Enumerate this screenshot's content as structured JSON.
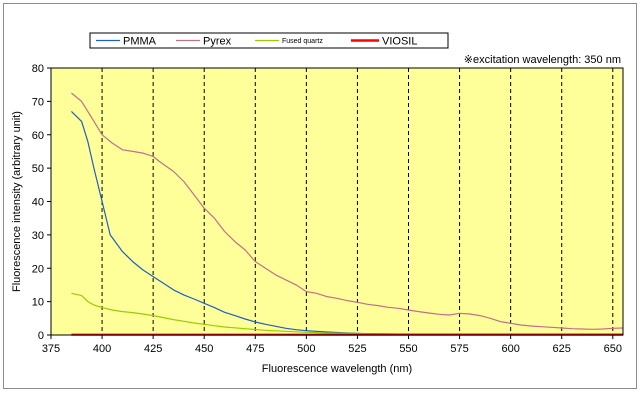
{
  "chart_data": {
    "type": "line",
    "title": "",
    "xlabel": "Fluorescence wavelength (nm)",
    "ylabel": "Fluorescence intensity (arbitrary unit)",
    "xlim": [
      375,
      655
    ],
    "ylim": [
      0,
      80
    ],
    "xticks": [
      375,
      400,
      425,
      450,
      475,
      500,
      525,
      550,
      575,
      600,
      625,
      650
    ],
    "yticks": [
      0,
      10,
      20,
      30,
      40,
      50,
      60,
      70,
      80
    ],
    "grid": "vertical-dashed",
    "plot_background": "#ffff99",
    "legend_position": "top",
    "annotation": "※excitation wavelength:  350 nm",
    "series": [
      {
        "name": "PMMA",
        "color": "#1f5fbf",
        "legend_small": false,
        "points": [
          [
            385,
            67
          ],
          [
            390,
            64
          ],
          [
            393,
            58
          ],
          [
            396,
            50
          ],
          [
            400,
            40
          ],
          [
            404,
            30
          ],
          [
            410,
            25
          ],
          [
            415,
            22
          ],
          [
            420,
            19.5
          ],
          [
            425,
            17.5
          ],
          [
            430,
            15.5
          ],
          [
            435,
            13.5
          ],
          [
            440,
            12
          ],
          [
            445,
            10.8
          ],
          [
            450,
            9.5
          ],
          [
            455,
            8.2
          ],
          [
            460,
            6.8
          ],
          [
            465,
            5.8
          ],
          [
            470,
            4.8
          ],
          [
            475,
            3.9
          ],
          [
            480,
            3.2
          ],
          [
            485,
            2.6
          ],
          [
            490,
            2.0
          ],
          [
            495,
            1.6
          ],
          [
            500,
            1.3
          ],
          [
            510,
            0.9
          ],
          [
            520,
            0.6
          ],
          [
            530,
            0.4
          ],
          [
            540,
            0.3
          ],
          [
            550,
            0.25
          ],
          [
            575,
            0.2
          ],
          [
            600,
            0.2
          ],
          [
            625,
            0.2
          ],
          [
            655,
            0.2
          ]
        ]
      },
      {
        "name": "Pyrex",
        "color": "#c0708a",
        "legend_small": false,
        "points": [
          [
            385,
            72.5
          ],
          [
            390,
            70
          ],
          [
            395,
            65
          ],
          [
            400,
            60
          ],
          [
            405,
            57.5
          ],
          [
            410,
            55.5
          ],
          [
            415,
            55
          ],
          [
            420,
            54.5
          ],
          [
            425,
            53.5
          ],
          [
            428,
            52
          ],
          [
            435,
            49
          ],
          [
            440,
            46
          ],
          [
            445,
            42
          ],
          [
            450,
            38
          ],
          [
            455,
            35
          ],
          [
            460,
            31
          ],
          [
            465,
            28
          ],
          [
            470,
            25.5
          ],
          [
            475,
            22
          ],
          [
            480,
            20
          ],
          [
            485,
            18
          ],
          [
            490,
            16.5
          ],
          [
            495,
            15
          ],
          [
            500,
            13
          ],
          [
            505,
            12.5
          ],
          [
            510,
            11.5
          ],
          [
            515,
            11
          ],
          [
            520,
            10.3
          ],
          [
            525,
            9.8
          ],
          [
            530,
            9.2
          ],
          [
            535,
            8.8
          ],
          [
            540,
            8.3
          ],
          [
            545,
            8
          ],
          [
            550,
            7.5
          ],
          [
            555,
            7
          ],
          [
            560,
            6.6
          ],
          [
            565,
            6.2
          ],
          [
            570,
            6
          ],
          [
            575,
            6.5
          ],
          [
            580,
            6.3
          ],
          [
            585,
            5.8
          ],
          [
            590,
            5
          ],
          [
            595,
            4
          ],
          [
            600,
            3.5
          ],
          [
            605,
            3
          ],
          [
            610,
            2.7
          ],
          [
            615,
            2.5
          ],
          [
            620,
            2.3
          ],
          [
            625,
            2.1
          ],
          [
            630,
            1.9
          ],
          [
            635,
            1.8
          ],
          [
            640,
            1.7
          ],
          [
            645,
            1.8
          ],
          [
            650,
            2.0
          ],
          [
            655,
            2.1
          ]
        ]
      },
      {
        "name": "Fused quartz",
        "color": "#99cc00",
        "legend_small": true,
        "points": [
          [
            385,
            12.5
          ],
          [
            390,
            11.8
          ],
          [
            393,
            10
          ],
          [
            396,
            9
          ],
          [
            400,
            8.2
          ],
          [
            405,
            7.5
          ],
          [
            410,
            7
          ],
          [
            415,
            6.7
          ],
          [
            420,
            6.3
          ],
          [
            425,
            5.8
          ],
          [
            430,
            5.2
          ],
          [
            435,
            4.6
          ],
          [
            440,
            4.1
          ],
          [
            445,
            3.6
          ],
          [
            450,
            3.2
          ],
          [
            455,
            2.8
          ],
          [
            460,
            2.4
          ],
          [
            470,
            1.9
          ],
          [
            480,
            1.4
          ],
          [
            490,
            1.1
          ],
          [
            500,
            0.8
          ],
          [
            510,
            0.6
          ],
          [
            520,
            0.5
          ],
          [
            530,
            0.4
          ],
          [
            540,
            0.35
          ],
          [
            550,
            0.3
          ],
          [
            575,
            0.3
          ],
          [
            600,
            0.3
          ],
          [
            625,
            0.3
          ],
          [
            655,
            0.3
          ]
        ]
      },
      {
        "name": "VIOSIL",
        "color": "#ff0000",
        "legend_small": false,
        "points": [
          [
            385,
            0.1
          ],
          [
            400,
            0.1
          ],
          [
            450,
            0.1
          ],
          [
            500,
            0.1
          ],
          [
            550,
            0.1
          ],
          [
            600,
            0.1
          ],
          [
            655,
            0.1
          ]
        ]
      }
    ]
  }
}
